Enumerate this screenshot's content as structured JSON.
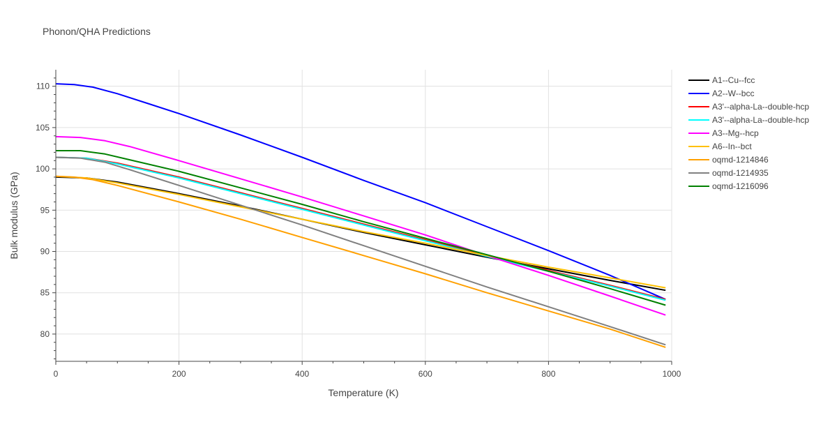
{
  "chart_data": {
    "type": "line",
    "title": "Phonon/QHA Predictions",
    "xlabel": "Temperature (K)",
    "ylabel": "Bulk modulus (GPa)",
    "xlim": [
      0,
      1000
    ],
    "ylim": [
      76.7,
      112
    ],
    "xticks": [
      0,
      200,
      400,
      600,
      800,
      1000
    ],
    "yticks": [
      80,
      85,
      90,
      95,
      100,
      105,
      110
    ],
    "grid": true,
    "legend_position": "right",
    "series": [
      {
        "name": "A1--Cu--fcc",
        "color": "#000000",
        "x": [
          0,
          50,
          100,
          200,
          300,
          400,
          500,
          600,
          700,
          800,
          900,
          990
        ],
        "y": [
          99.0,
          98.9,
          98.4,
          97.0,
          95.5,
          93.9,
          92.3,
          90.8,
          89.3,
          87.9,
          86.5,
          85.3
        ]
      },
      {
        "name": "A2--W--bcc",
        "color": "#0000ff",
        "x": [
          0,
          30,
          60,
          100,
          150,
          200,
          300,
          400,
          500,
          600,
          700,
          800,
          900,
          990
        ],
        "y": [
          110.3,
          110.2,
          109.9,
          109.1,
          107.9,
          106.7,
          104.1,
          101.4,
          98.6,
          95.9,
          93.0,
          90.1,
          87.1,
          84.2
        ]
      },
      {
        "name": "A3'--alpha-La--double-hcp",
        "color": "#ff0000",
        "x": [
          0,
          50,
          100,
          200,
          300,
          400,
          500,
          600,
          700,
          800,
          900,
          990
        ],
        "y": [
          101.4,
          101.3,
          100.7,
          99.0,
          97.1,
          95.2,
          93.3,
          91.4,
          89.5,
          87.7,
          85.9,
          84.2
        ]
      },
      {
        "name": "A3'--alpha-La--double-hcp",
        "color": "#00ffff",
        "x": [
          0,
          50,
          100,
          200,
          300,
          400,
          500,
          600,
          700,
          800,
          900,
          990
        ],
        "y": [
          101.4,
          101.3,
          100.6,
          98.9,
          97.0,
          95.1,
          93.2,
          91.3,
          89.4,
          87.6,
          85.8,
          84.1
        ]
      },
      {
        "name": "A3--Mg--hcp",
        "color": "#ff00ff",
        "x": [
          0,
          40,
          80,
          120,
          200,
          300,
          400,
          500,
          600,
          700,
          800,
          900,
          990
        ],
        "y": [
          103.9,
          103.8,
          103.4,
          102.7,
          101.0,
          98.8,
          96.6,
          94.3,
          92.0,
          89.5,
          87.1,
          84.6,
          82.3
        ]
      },
      {
        "name": "A6--In--bct",
        "color": "#ffc000",
        "x": [
          0,
          50,
          100,
          200,
          300,
          400,
          500,
          600,
          700,
          800,
          900,
          990
        ],
        "y": [
          99.1,
          98.9,
          98.3,
          96.9,
          95.4,
          93.9,
          92.4,
          91.0,
          89.5,
          88.1,
          86.8,
          85.6
        ]
      },
      {
        "name": "oqmd-1214846",
        "color": "#ffa000",
        "x": [
          0,
          30,
          60,
          100,
          200,
          300,
          400,
          500,
          600,
          700,
          800,
          900,
          990
        ],
        "y": [
          99.1,
          99.0,
          98.7,
          98.0,
          96.0,
          93.9,
          91.7,
          89.5,
          87.3,
          85.0,
          82.8,
          80.6,
          78.4
        ]
      },
      {
        "name": "oqmd-1214935",
        "color": "#808080",
        "x": [
          0,
          40,
          80,
          120,
          200,
          300,
          400,
          500,
          600,
          700,
          800,
          900,
          990
        ],
        "y": [
          101.4,
          101.3,
          100.8,
          99.9,
          98.0,
          95.6,
          93.2,
          90.7,
          88.2,
          85.7,
          83.3,
          80.9,
          78.7
        ]
      },
      {
        "name": "oqmd-1216096",
        "color": "#008000",
        "x": [
          0,
          40,
          80,
          120,
          200,
          300,
          400,
          500,
          600,
          700,
          800,
          900,
          990
        ],
        "y": [
          102.2,
          102.2,
          101.8,
          101.1,
          99.7,
          97.7,
          95.7,
          93.6,
          91.6,
          89.6,
          87.6,
          85.5,
          83.5
        ]
      }
    ]
  }
}
